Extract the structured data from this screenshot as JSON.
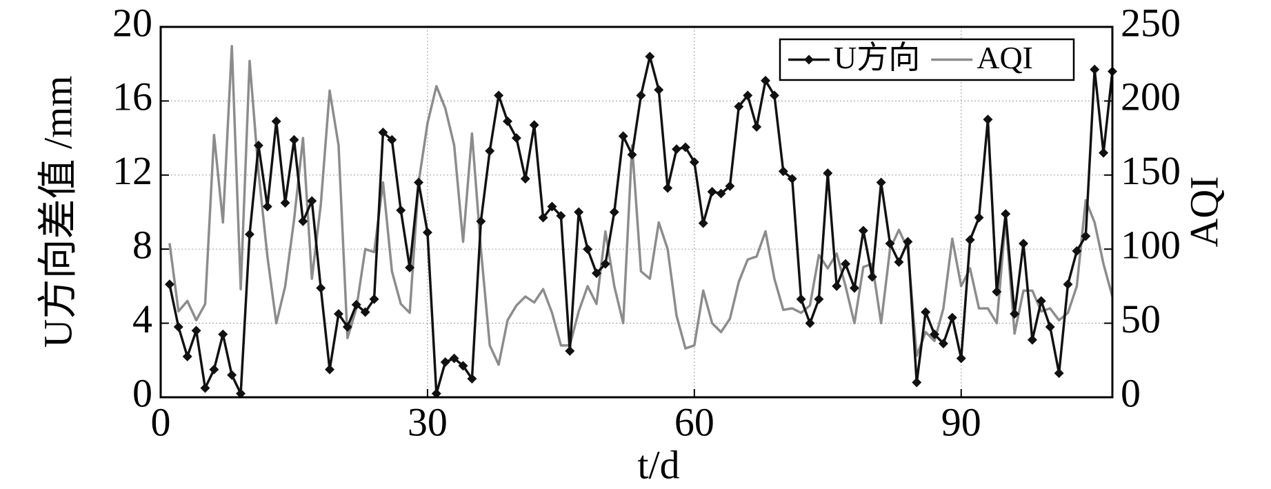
{
  "chart_data": {
    "type": "line",
    "x_label": "t/d",
    "y_label": "U方向差值 /mm",
    "y2_label": "AQI",
    "x": [
      1,
      2,
      3,
      4,
      5,
      6,
      7,
      8,
      9,
      10,
      11,
      12,
      13,
      14,
      15,
      16,
      17,
      18,
      19,
      20,
      21,
      22,
      23,
      24,
      25,
      26,
      27,
      28,
      29,
      30,
      31,
      32,
      33,
      34,
      35,
      36,
      37,
      38,
      39,
      40,
      41,
      42,
      43,
      44,
      45,
      46,
      47,
      48,
      49,
      50,
      51,
      52,
      53,
      54,
      55,
      56,
      57,
      58,
      59,
      60,
      61,
      62,
      63,
      64,
      65,
      66,
      67,
      68,
      69,
      70,
      71,
      72,
      73,
      74,
      75,
      76,
      77,
      78,
      79,
      80,
      81,
      82,
      83,
      84,
      85,
      86,
      87,
      88,
      89,
      90,
      91,
      92,
      93,
      94,
      95,
      96,
      97,
      98,
      99,
      100,
      101,
      102,
      103,
      104,
      105,
      106,
      107
    ],
    "series": [
      {
        "name": "U方向",
        "color": "#111111",
        "marker": "diamond",
        "values": [
          6.1,
          3.8,
          2.2,
          3.6,
          0.5,
          1.5,
          3.4,
          1.2,
          0.2,
          8.8,
          13.6,
          10.3,
          14.9,
          10.5,
          13.9,
          9.5,
          10.6,
          5.9,
          1.5,
          4.5,
          3.8,
          5.0,
          4.6,
          5.3,
          14.3,
          13.9,
          10.1,
          7.0,
          11.6,
          8.9,
          0.2,
          1.9,
          2.1,
          1.7,
          1.0,
          9.5,
          13.3,
          16.3,
          14.9,
          14.0,
          11.8,
          14.7,
          9.7,
          10.3,
          9.8,
          2.5,
          10.0,
          8.0,
          6.7,
          7.2,
          10.0,
          14.1,
          13.1,
          16.3,
          18.4,
          16.6,
          11.3,
          13.4,
          13.5,
          12.7,
          9.4,
          11.1,
          11.0,
          11.4,
          15.7,
          16.3,
          14.6,
          17.1,
          16.3,
          12.2,
          11.8,
          5.3,
          4.0,
          5.3,
          12.1,
          6.0,
          7.2,
          5.9,
          9.0,
          6.5,
          11.6,
          8.3,
          7.3,
          8.4,
          0.8,
          4.6,
          3.4,
          2.9,
          4.3,
          2.1,
          8.5,
          9.7,
          15.0,
          5.7,
          9.9,
          4.5,
          8.3,
          3.1,
          5.2,
          3.8,
          1.3,
          6.1,
          7.9,
          8.7,
          17.7,
          13.2,
          17.6
        ]
      },
      {
        "name": "AQI",
        "color": "#8c8c8c",
        "axis": "y2",
        "values": [
          104,
          58,
          65,
          52,
          63,
          177,
          118,
          237,
          73,
          227,
          152,
          95,
          50,
          75,
          120,
          175,
          80,
          130,
          207,
          170,
          40,
          60,
          100,
          98,
          145,
          85,
          63,
          57,
          145,
          185,
          210,
          195,
          170,
          105,
          178,
          100,
          35,
          22,
          52,
          62,
          68,
          64,
          73,
          57,
          35,
          35,
          58,
          75,
          63,
          112,
          75,
          50,
          170,
          85,
          80,
          118,
          100,
          55,
          33,
          35,
          72,
          50,
          44,
          53,
          78,
          93,
          95,
          112,
          80,
          59,
          60,
          57,
          62,
          96,
          87,
          97,
          75,
          50,
          88,
          90,
          50,
          100,
          113,
          100,
          28,
          44,
          38,
          60,
          107,
          75,
          87,
          60,
          60,
          50,
          120,
          43,
          72,
          72,
          58,
          60,
          52,
          57,
          75,
          133,
          118,
          90,
          68
        ]
      }
    ],
    "xlim": [
      0,
      107
    ],
    "xticks": [
      0,
      30,
      60,
      90
    ],
    "ylim": [
      0,
      20
    ],
    "yticks": [
      0,
      4,
      8,
      12,
      16,
      20
    ],
    "y2lim": [
      0,
      250
    ],
    "y2ticks": [
      0,
      50,
      100,
      150,
      200,
      250
    ],
    "grid": true,
    "legend": "upper right"
  }
}
